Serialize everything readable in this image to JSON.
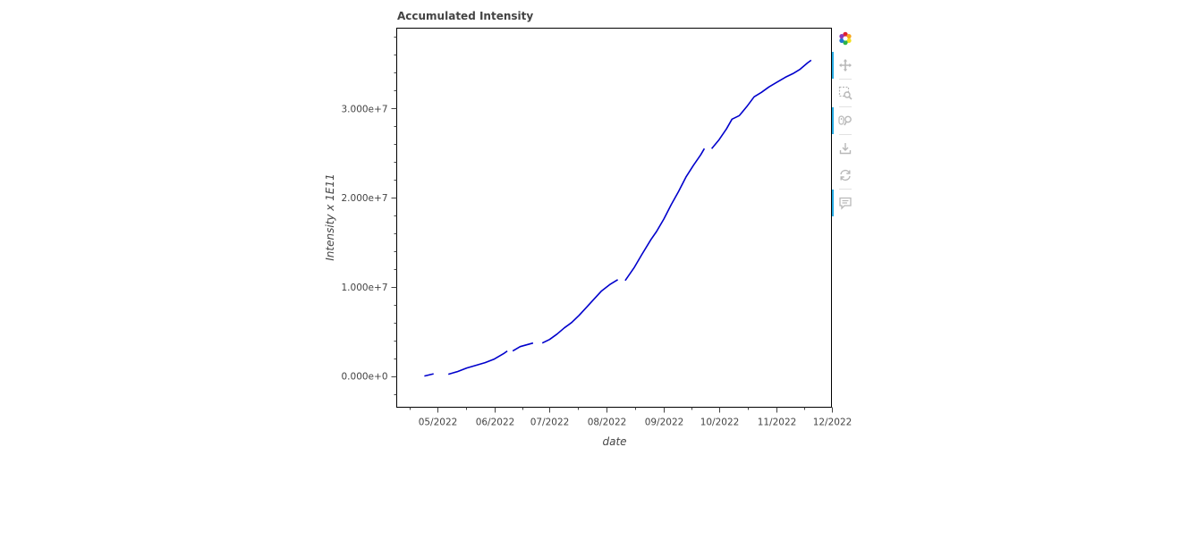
{
  "chart_data": {
    "type": "line",
    "title": "Accumulated Intensity",
    "xlabel": "date",
    "ylabel": "Intensity x 1E11",
    "x_tick_labels": [
      "05/2022",
      "06/2022",
      "07/2022",
      "08/2022",
      "09/2022",
      "10/2022",
      "11/2022",
      "12/2022"
    ],
    "y_tick_labels": [
      "0.000e+0",
      "1.000e+7",
      "2.000e+7",
      "3.000e+7"
    ],
    "ylim": [
      -3500000,
      39000000
    ],
    "xlim": [
      "2022-04-09",
      "2022-12-01"
    ],
    "grid": false,
    "series": [
      {
        "color": "#0000cc",
        "segments": [
          [
            [
              "2022-04-24",
              0
            ],
            [
              "2022-04-27",
              150000
            ],
            [
              "2022-04-29",
              250000
            ]
          ],
          [
            [
              "2022-05-07",
              200000
            ],
            [
              "2022-05-12",
              500000
            ],
            [
              "2022-05-17",
              900000
            ],
            [
              "2022-05-22",
              1200000
            ],
            [
              "2022-05-27",
              1500000
            ],
            [
              "2022-06-01",
              1900000
            ],
            [
              "2022-06-06",
              2500000
            ],
            [
              "2022-06-08",
              2800000
            ]
          ],
          [
            [
              "2022-06-11",
              2800000
            ],
            [
              "2022-06-15",
              3300000
            ],
            [
              "2022-06-22",
              3700000
            ]
          ],
          [
            [
              "2022-06-27",
              3700000
            ],
            [
              "2022-07-01",
              4100000
            ],
            [
              "2022-07-05",
              4700000
            ],
            [
              "2022-07-09",
              5400000
            ],
            [
              "2022-07-13",
              6000000
            ],
            [
              "2022-07-17",
              6800000
            ],
            [
              "2022-07-21",
              7700000
            ],
            [
              "2022-07-25",
              8600000
            ],
            [
              "2022-07-29",
              9500000
            ],
            [
              "2022-08-03",
              10300000
            ],
            [
              "2022-08-07",
              10800000
            ]
          ],
          [
            [
              "2022-08-11",
              10700000
            ],
            [
              "2022-08-16",
              12200000
            ],
            [
              "2022-08-20",
              13600000
            ],
            [
              "2022-08-25",
              15300000
            ],
            [
              "2022-08-28",
              16200000
            ],
            [
              "2022-09-01",
              17600000
            ],
            [
              "2022-09-05",
              19200000
            ],
            [
              "2022-09-09",
              20700000
            ],
            [
              "2022-09-13",
              22300000
            ],
            [
              "2022-09-17",
              23600000
            ],
            [
              "2022-09-21",
              24800000
            ],
            [
              "2022-09-23",
              25500000
            ]
          ],
          [
            [
              "2022-09-27",
              25500000
            ],
            [
              "2022-10-01",
              26500000
            ],
            [
              "2022-10-05",
              27700000
            ],
            [
              "2022-10-08",
              28800000
            ],
            [
              "2022-10-12",
              29200000
            ],
            [
              "2022-10-16",
              30200000
            ],
            [
              "2022-10-20",
              31300000
            ],
            [
              "2022-10-24",
              31800000
            ],
            [
              "2022-10-28",
              32400000
            ],
            [
              "2022-11-01",
              32900000
            ],
            [
              "2022-11-06",
              33500000
            ],
            [
              "2022-11-10",
              33900000
            ],
            [
              "2022-11-14",
              34400000
            ],
            [
              "2022-11-18",
              35100000
            ],
            [
              "2022-11-20",
              35400000
            ]
          ]
        ]
      }
    ]
  },
  "toolbar": {
    "items": [
      {
        "icon": "bokeh-logo-icon",
        "active": false
      },
      {
        "icon": "pan-icon",
        "active": true
      },
      {
        "icon": "box-zoom-icon",
        "active": false
      },
      {
        "icon": "wheel-zoom-icon",
        "active": true
      },
      {
        "icon": "save-icon",
        "active": false
      },
      {
        "icon": "reset-icon",
        "active": false
      },
      {
        "icon": "hover-icon",
        "active": true
      }
    ],
    "icon_color": "#b8b8b8",
    "active_color": "#26aae1"
  }
}
